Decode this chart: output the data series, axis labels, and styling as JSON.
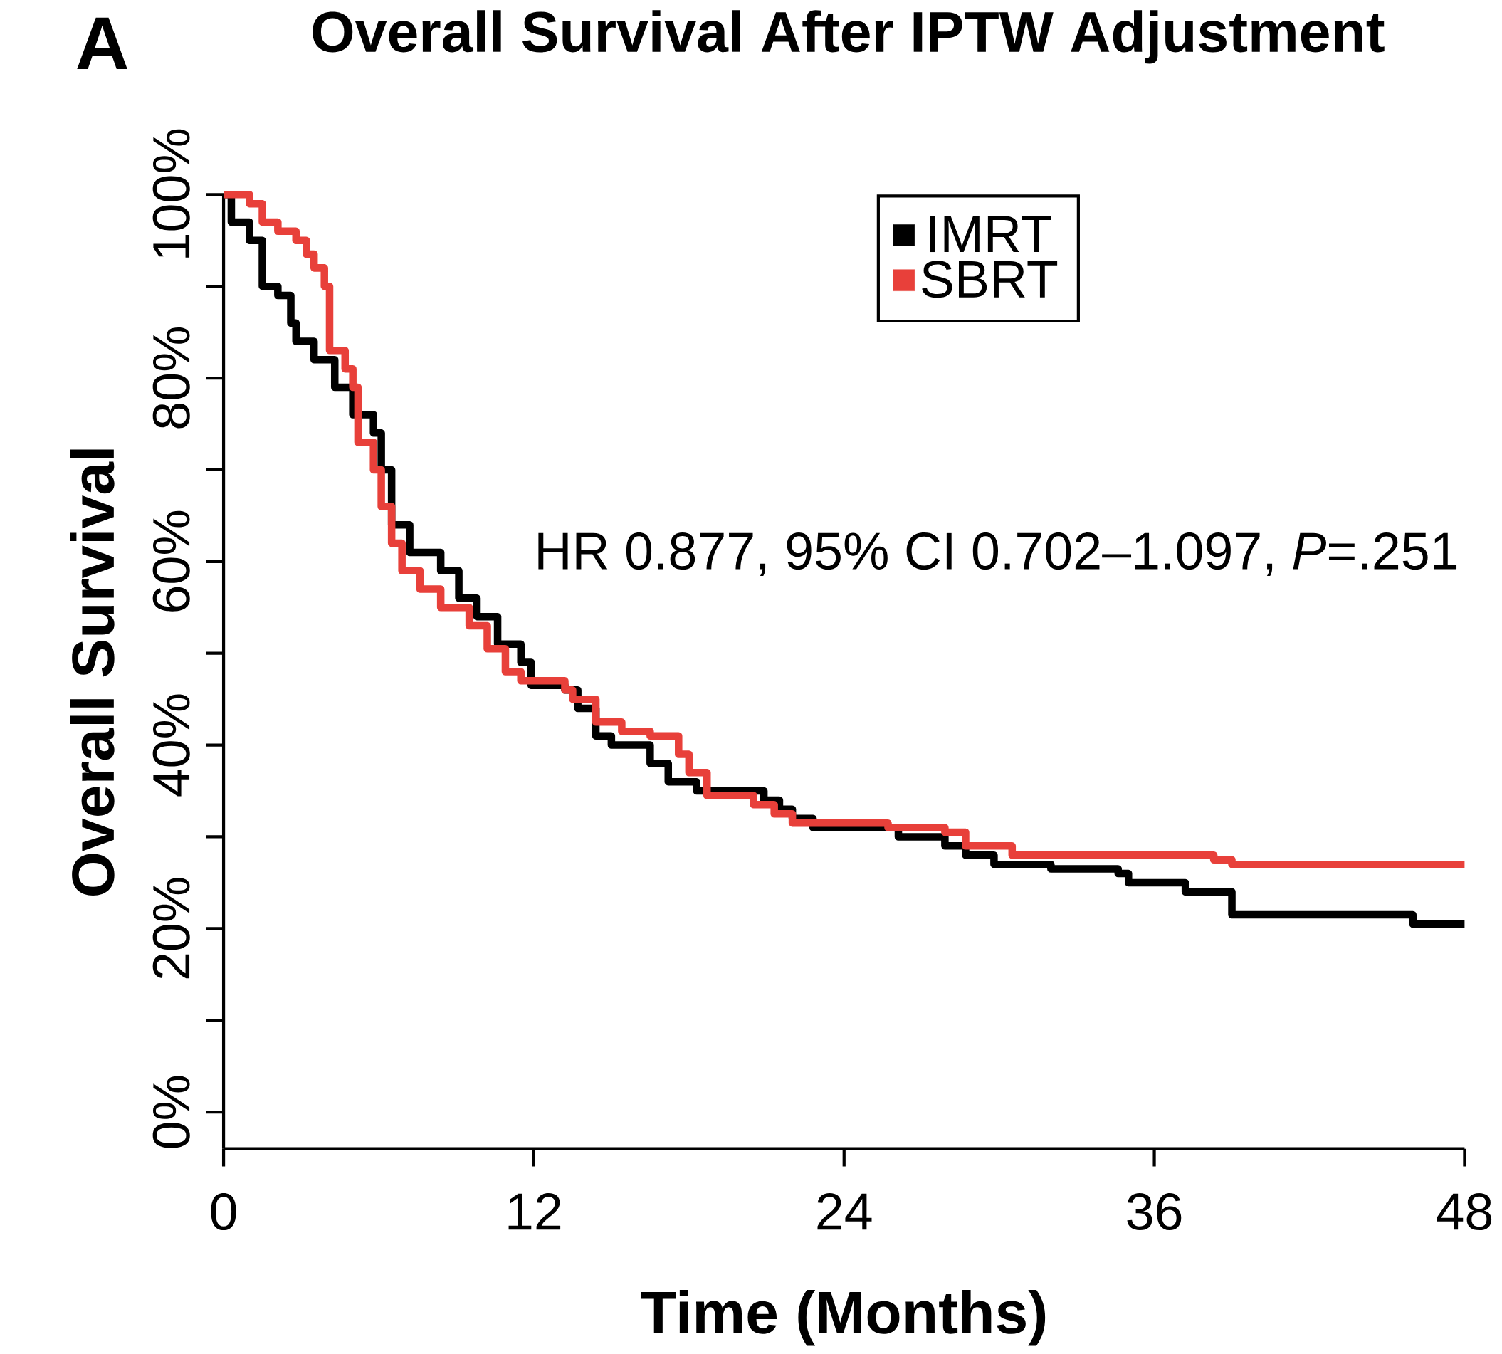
{
  "chart_data": {
    "type": "step",
    "title": "Overall Survival After IPTW Adjustment",
    "xlabel": "Time (Months)",
    "ylabel": "Overall Survival",
    "annotations": [
      "A",
      "HR 0.877, 95% CI 0.702–1.097, *P*=.251"
    ],
    "xlim": [
      0,
      48
    ],
    "xticks": [
      0,
      12,
      24,
      36,
      48
    ],
    "ylim": [
      -4,
      100
    ],
    "yticks": [
      {
        "value": 0,
        "label": "0%"
      },
      {
        "value": 20,
        "label": "20%"
      },
      {
        "value": 40,
        "label": "40%"
      },
      {
        "value": 60,
        "label": "60%"
      },
      {
        "value": 80,
        "label": "80%"
      },
      {
        "value": 100,
        "label": "100%"
      }
    ],
    "legend": "top right",
    "grid": false,
    "marker": "none",
    "line_style": "solid",
    "series": [
      {
        "name": "IMRT",
        "color": "#000000",
        "x": [
          0,
          0.3,
          1.0,
          1.5,
          2.1,
          2.6,
          2.8,
          3.5,
          4.3,
          5.0,
          5.8,
          6.1,
          6.5,
          7.2,
          8.4,
          9.1,
          9.8,
          10.6,
          11.5,
          11.9,
          13.2,
          13.7,
          14.4,
          15.0,
          16.5,
          17.2,
          18.3,
          20.9,
          21.5,
          22.0,
          22.8,
          26.1,
          27.9,
          28.7,
          29.8,
          32.0,
          34.6,
          35.0,
          37.2,
          39.0,
          46.0,
          48
        ],
        "values": [
          100,
          97,
          95,
          90,
          89,
          86,
          84,
          82,
          79,
          76,
          74,
          70,
          64,
          61,
          59,
          56,
          54,
          51,
          49,
          46.5,
          46,
          44,
          41,
          40,
          38,
          36,
          35,
          34,
          33,
          32,
          31,
          30,
          29,
          28,
          27,
          26.5,
          26,
          25,
          24,
          21.5,
          20.5,
          20.5
        ]
      },
      {
        "name": "SBRT",
        "color": "#e8403a",
        "x": [
          0,
          1.0,
          1.5,
          2.1,
          2.8,
          3.2,
          3.5,
          3.9,
          4.1,
          4.7,
          5.0,
          5.2,
          5.8,
          6.1,
          6.5,
          6.9,
          7.6,
          8.4,
          9.5,
          10.2,
          10.9,
          11.5,
          13.2,
          13.5,
          14.4,
          15.4,
          16.5,
          17.6,
          18.0,
          18.7,
          20.5,
          21.3,
          22.0,
          25.7,
          27.9,
          28.7,
          30.5,
          38.3,
          39.0,
          48
        ],
        "values": [
          100,
          99,
          97,
          96,
          95,
          93.5,
          92,
          90,
          83,
          81,
          79,
          73,
          70,
          66,
          62,
          59,
          57,
          55,
          53,
          50.5,
          48,
          47,
          46,
          45,
          42.5,
          41.5,
          41,
          39,
          37,
          34.5,
          33.5,
          32.5,
          31.5,
          31,
          30.5,
          29,
          28,
          27.5,
          27,
          27
        ]
      }
    ]
  }
}
